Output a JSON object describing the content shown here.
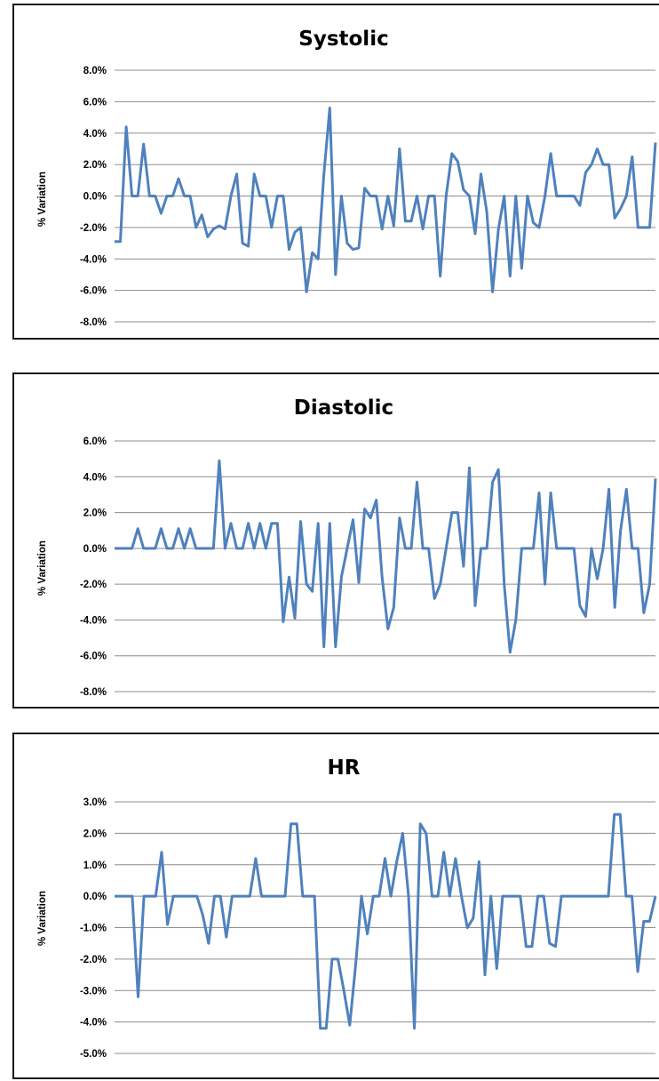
{
  "colors": {
    "series": "#4f81bd",
    "grid": "#8c8c8c",
    "frame": "#1a1a1a"
  },
  "chart_data": [
    {
      "type": "line",
      "title": "Systolic",
      "ylabel": "% Variation",
      "xlabel": "",
      "ylim": [
        -8,
        8
      ],
      "yticks": [
        "8.0%",
        "6.0%",
        "4.0%",
        "2.0%",
        "0.0%",
        "-2.0%",
        "-4.0%",
        "-6.0%",
        "-8.0%"
      ],
      "grid": true,
      "series": [
        {
          "values": [
            -2.9,
            -2.9,
            4.4,
            0,
            0,
            3.3,
            0,
            0,
            -1.1,
            0,
            0,
            1.1,
            0,
            0,
            -2,
            -1.2,
            -2.6,
            -2.1,
            -1.9,
            -2.1,
            0,
            1.4,
            -3,
            -3.2,
            1.4,
            0,
            0,
            -2,
            0,
            0,
            -3.4,
            -2.3,
            -2,
            -6.1,
            -3.6,
            -4,
            1.4,
            5.6,
            -5,
            0,
            -3,
            -3.4,
            -3.3,
            0.5,
            0,
            0,
            -2.1,
            0,
            -1.9,
            3,
            -1.6,
            -1.6,
            0,
            -2.1,
            0,
            0,
            -5.1,
            0,
            2.7,
            2.2,
            0.4,
            0,
            -2.4,
            1.4,
            -1,
            -6.1,
            -2.1,
            0,
            -5.1,
            0,
            -4.6,
            0,
            -1.7,
            -2,
            0,
            2.7,
            0,
            0,
            0,
            0,
            -0.6,
            1.5,
            2,
            3,
            2,
            2,
            -1.4,
            -0.8,
            0,
            2.5,
            -2,
            -2,
            -2,
            3.4
          ]
        }
      ]
    },
    {
      "type": "line",
      "title": "Diastolic",
      "ylabel": "% Variation",
      "xlabel": "",
      "ylim": [
        -8,
        6
      ],
      "yticks": [
        "6.0%",
        "4.0%",
        "2.0%",
        "0.0%",
        "-2.0%",
        "-4.0%",
        "-6.0%",
        "-8.0%"
      ],
      "grid": true,
      "series": [
        {
          "values": [
            0,
            0,
            0,
            0,
            1.1,
            0,
            0,
            0,
            1.1,
            0,
            0,
            1.1,
            0,
            1.1,
            0,
            0,
            0,
            0,
            4.9,
            0,
            1.4,
            0,
            0,
            1.4,
            0,
            1.4,
            0,
            1.4,
            1.4,
            -4.1,
            -1.6,
            -3.9,
            1.5,
            -2,
            -2.4,
            1.4,
            -5.5,
            1.4,
            -5.5,
            -1.6,
            0,
            1.6,
            -1.9,
            2.2,
            1.7,
            2.7,
            -1.6,
            -4.5,
            -3.3,
            1.7,
            0,
            0,
            3.7,
            0,
            0,
            -2.8,
            -2,
            0,
            2,
            2,
            -1,
            4.5,
            -3.2,
            0,
            0,
            3.7,
            4.4,
            -2,
            -5.8,
            -4,
            0,
            0,
            0,
            3.1,
            -2,
            3.1,
            0,
            0,
            0,
            0,
            -3.2,
            -3.8,
            0,
            -1.7,
            0,
            3.3,
            -3.3,
            1,
            3.3,
            0,
            0,
            -3.6,
            -2,
            3.9
          ]
        }
      ]
    },
    {
      "type": "line",
      "title": "HR",
      "ylabel": "% Variation",
      "xlabel": "",
      "ylim": [
        -5,
        3
      ],
      "yticks": [
        "3.0%",
        "2.0%",
        "1.0%",
        "0.0%",
        "-1.0%",
        "-2.0%",
        "-3.0%",
        "-4.0%",
        "-5.0%"
      ],
      "grid": true,
      "series": [
        {
          "values": [
            0,
            0,
            0,
            0,
            -3.2,
            0,
            0,
            0,
            1.4,
            -0.9,
            0,
            0,
            0,
            0,
            0,
            -0.6,
            -1.5,
            0,
            0,
            -1.3,
            0,
            0,
            0,
            0,
            1.2,
            0,
            0,
            0,
            0,
            0,
            2.3,
            2.3,
            0,
            0,
            0,
            -4.2,
            -4.2,
            -2,
            -2,
            -3,
            -4.1,
            -2.2,
            0,
            -1.2,
            0,
            0,
            1.2,
            0,
            1.1,
            2,
            0,
            -4.2,
            2.3,
            2,
            0,
            0,
            1.4,
            0,
            1.2,
            0,
            -1,
            -0.7,
            1.1,
            -2.5,
            0,
            -2.3,
            0,
            0,
            0,
            0,
            -1.6,
            -1.6,
            0,
            0,
            -1.5,
            -1.6,
            0,
            0,
            0,
            0,
            0,
            0,
            0,
            0,
            0,
            2.6,
            2.6,
            0,
            0,
            -2.4,
            -0.8,
            -0.8,
            0
          ]
        }
      ]
    }
  ]
}
